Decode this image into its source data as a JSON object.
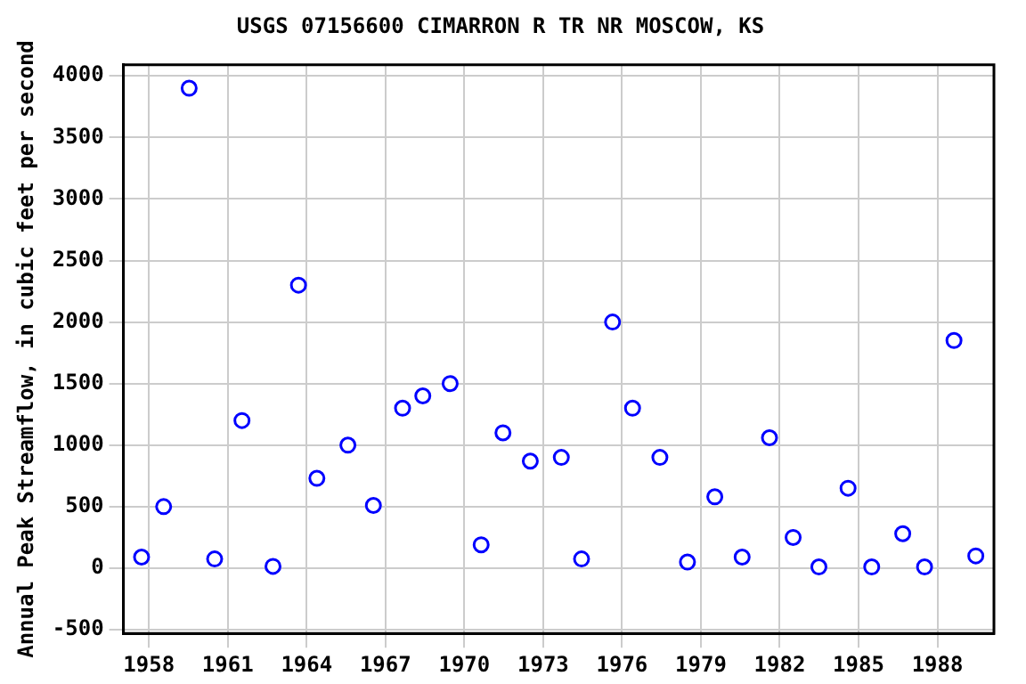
{
  "chart_data": {
    "type": "scatter",
    "title": "USGS 07156600 CIMARRON R TR NR MOSCOW, KS",
    "ylabel": "Annual Peak Streamflow, in cubic feet per second",
    "x": [
      1957.72,
      1958.56,
      1959.53,
      1960.5,
      1961.54,
      1962.72,
      1963.69,
      1964.39,
      1965.57,
      1966.54,
      1967.65,
      1968.42,
      1969.46,
      1970.64,
      1971.47,
      1972.51,
      1973.69,
      1974.46,
      1975.64,
      1976.4,
      1977.44,
      1978.49,
      1979.53,
      1980.57,
      1981.61,
      1982.51,
      1983.49,
      1984.6,
      1985.5,
      1986.68,
      1987.51,
      1988.63,
      1989.46
    ],
    "series": [
      {
        "color": "#0000ff",
        "values": [
          90,
          500,
          3900,
          75,
          1200,
          15,
          2300,
          730,
          1000,
          510,
          1300,
          1400,
          1500,
          190,
          1100,
          870,
          900,
          75,
          2000,
          1300,
          900,
          50,
          580,
          90,
          1060,
          250,
          10,
          650,
          10,
          280,
          10,
          1850,
          100
        ]
      }
    ],
    "xlim": [
      1957.03,
      1990.15
    ],
    "xticks": [
      1958,
      1961,
      1964,
      1967,
      1970,
      1973,
      1976,
      1979,
      1982,
      1985,
      1988
    ],
    "ylim": [
      -530,
      4090
    ],
    "yticks": [
      -500,
      0,
      500,
      1000,
      1500,
      2000,
      2500,
      3000,
      3500,
      4000
    ],
    "grid": true,
    "legend": false,
    "marker": "circle"
  }
}
